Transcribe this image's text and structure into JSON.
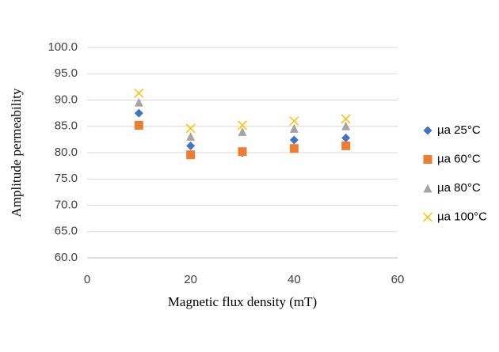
{
  "chart_data": {
    "type": "scatter",
    "x_label": "Magnetic flux density (mT)",
    "y_label": "Amplitude permeability",
    "x": [
      10,
      20,
      30,
      40,
      50
    ],
    "series": [
      {
        "name": "µa 25°C",
        "color": "#4472c4",
        "marker": "diamond",
        "values": [
          87.5,
          81.3,
          80.0,
          82.4,
          82.8
        ]
      },
      {
        "name": "µa 60°C",
        "color": "#ed7d31",
        "marker": "square",
        "values": [
          85.2,
          79.6,
          80.2,
          80.8,
          81.3
        ]
      },
      {
        "name": "µa 80°C",
        "color": "#a5a5a5",
        "marker": "triangle",
        "values": [
          89.6,
          83.1,
          84.0,
          84.6,
          85.1
        ]
      },
      {
        "name": "µa 100°C",
        "color": "#ffc000",
        "marker": "x",
        "values": [
          91.3,
          84.6,
          85.2,
          86.0,
          86.4
        ]
      }
    ],
    "xlim": [
      0,
      60
    ],
    "xticks": [
      0,
      20,
      40,
      60
    ],
    "ylim": [
      60,
      100
    ],
    "yticks": [
      {
        "value": 60,
        "label": "60.0"
      },
      {
        "value": 65,
        "label": "65.0"
      },
      {
        "value": 70,
        "label": "70.0"
      },
      {
        "value": 75,
        "label": "75.0"
      },
      {
        "value": 80,
        "label": "80.0"
      },
      {
        "value": 85,
        "label": "85.0"
      },
      {
        "value": 90,
        "label": "90.0"
      },
      {
        "value": 95,
        "label": "95.0"
      },
      {
        "value": 100,
        "label": "100.0"
      }
    ],
    "grid": true,
    "legend": "right"
  }
}
